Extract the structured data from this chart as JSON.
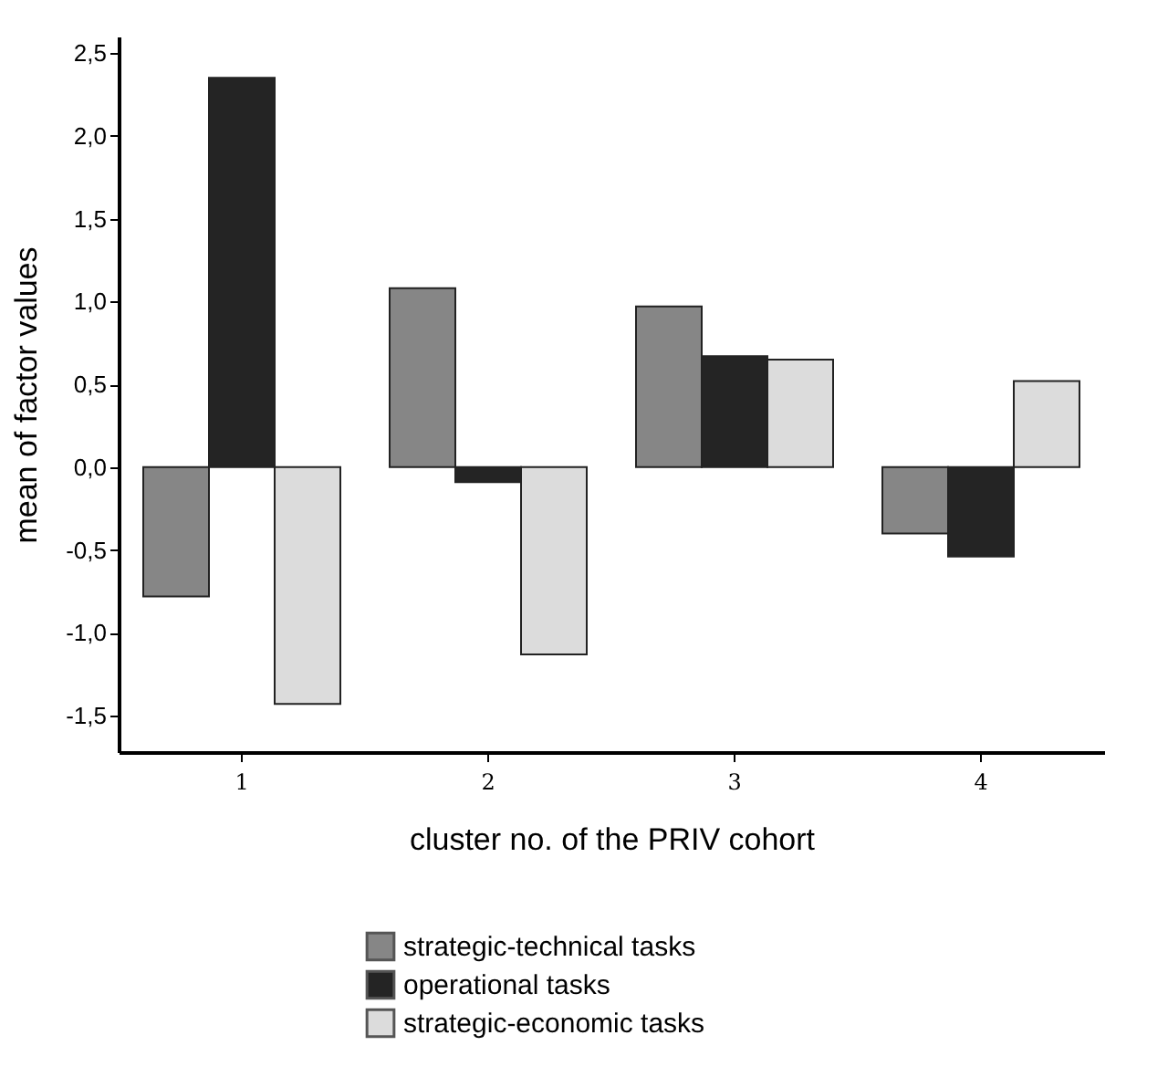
{
  "chart_data": {
    "type": "bar",
    "xlabel": "cluster no. of the PRIV cohort",
    "ylabel": "mean of factor values",
    "categories": [
      "1",
      "2",
      "3",
      "4"
    ],
    "series": [
      {
        "name": "strategic-technical tasks",
        "color": "#868686",
        "values": [
          -0.78,
          1.08,
          0.97,
          -0.4
        ]
      },
      {
        "name": "operational tasks",
        "color": "#242424",
        "values": [
          2.35,
          -0.09,
          0.67,
          -0.54
        ]
      },
      {
        "name": "strategic-economic tasks",
        "color": "#dcdcdc",
        "values": [
          -1.43,
          -1.13,
          0.65,
          0.52
        ]
      }
    ],
    "ylim": [
      -1.72,
      2.6
    ],
    "yticks": [
      {
        "value": -1.5,
        "label": "-1,5"
      },
      {
        "value": -1.0,
        "label": "-1,0"
      },
      {
        "value": -0.5,
        "label": "-0,5"
      },
      {
        "value": 0,
        "label": "0,0"
      },
      {
        "value": 0.5,
        "label": "0,5"
      },
      {
        "value": 1.0,
        "label": "1,0"
      },
      {
        "value": 1.5,
        "label": "1,5"
      },
      {
        "value": 2.0,
        "label": "2,0"
      },
      {
        "value": 2.5,
        "label": "2,5"
      }
    ],
    "grid": false,
    "legend": "bottom"
  }
}
